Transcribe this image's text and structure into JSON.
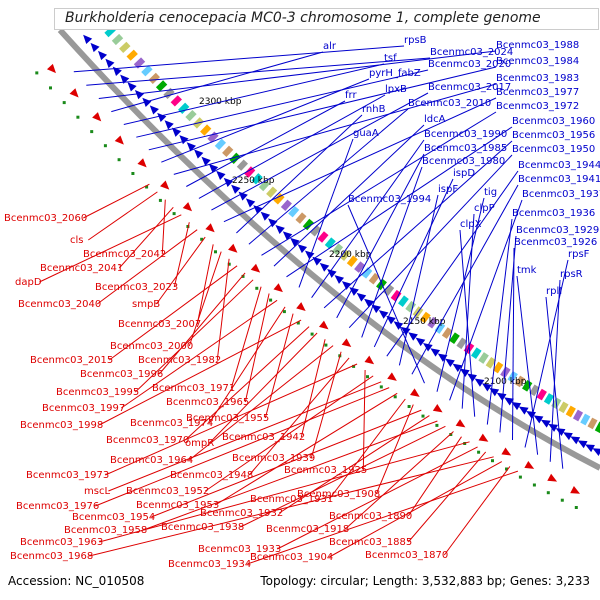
{
  "title": "Burkholderia cenocepacia MC0-3 chromosome 1, complete genome",
  "footer": {
    "accession": "Accession: NC_010508",
    "stats": "Topology: circular; Length: 3,532,883 bp; Genes: 3,233"
  },
  "colors": {
    "forward": "#0000cc",
    "reverse": "#dd0000",
    "backbone": "#888888",
    "ticks": "#1a8a1a"
  },
  "ticks": [
    "2300 kbp",
    "2250 kbp",
    "2200 kbp",
    "2150 kbp",
    "2100 kbp"
  ],
  "forward_labels": [
    "rpsB",
    "Bcenmc03_2024",
    "Bcenmc03_1988",
    "alr",
    "tsf",
    "Bcenmc03_2020",
    "Bcenmc03_1984",
    "pyrH_fabZ",
    "Bcenmc03_1983",
    "frr",
    "lpxB",
    "Bcenmc03_2017",
    "Bcenmc03_1977",
    "rnhB",
    "Bcenmc03_2010",
    "Bcenmc03_1972",
    "ldcA",
    "Bcenmc03_1960",
    "guaA",
    "Bcenmc03_1990",
    "Bcenmc03_1956",
    "Bcenmc03_1985",
    "Bcenmc03_1950",
    "Bcenmc03_1980",
    "ispD",
    "Bcenmc03_1944",
    "ispF",
    "Bcenmc03_1941",
    "Bcenmc03_1994",
    "tig",
    "Bcenmc03_1937",
    "clpP",
    "clpX",
    "Bcenmc03_1936",
    "Bcenmc03_1929",
    "Bcenmc03_1926",
    "rpsF",
    "tmk",
    "rpsR",
    "rplI"
  ],
  "reverse_labels": [
    "Bcenmc03_2060",
    "cls",
    "Bcenmc03_2042",
    "Bcenmc03_2041",
    "dapD",
    "Bcenmc03_2023",
    "Bcenmc03_2040",
    "smpB",
    "Bcenmc03_2007",
    "Bcenmc03_2000",
    "Bcenmc03_1982",
    "Bcenmc03_2015",
    "Bcenmc03_1996",
    "Bcenmc03_1995",
    "Bcenmc03_1971",
    "Bcenmc03_1965",
    "Bcenmc03_1997",
    "Bcenmc03_1974",
    "Bcenmc03_1955",
    "Bcenmc03_1998",
    "Bcenmc03_1970",
    "ompR",
    "Bcenmc03_1942",
    "Bcenmc03_1964",
    "Bcenmc03_1939",
    "Bcenmc03_1948",
    "Bcenmc03_1973",
    "Bcenmc03_1925",
    "Bcenmc03_1952",
    "mscL",
    "Bcenmc03_1976",
    "Bcenmc03_1953",
    "Bcenmc03_1931",
    "Bcenmc03_1908",
    "Bcenmc03_1954",
    "Bcenmc03_1932",
    "Bcenmc03_1958",
    "Bcenmc03_1938",
    "Bcenmc03_1918",
    "Bcenmc03_1890",
    "Bcenmc03_1963",
    "Bcenmc03_1933",
    "Bcenmc03_1885",
    "Bcenmc03_1968",
    "Bcenmc03_1904",
    "Bcenmc03_1870",
    "Bcenmc03_1934"
  ]
}
